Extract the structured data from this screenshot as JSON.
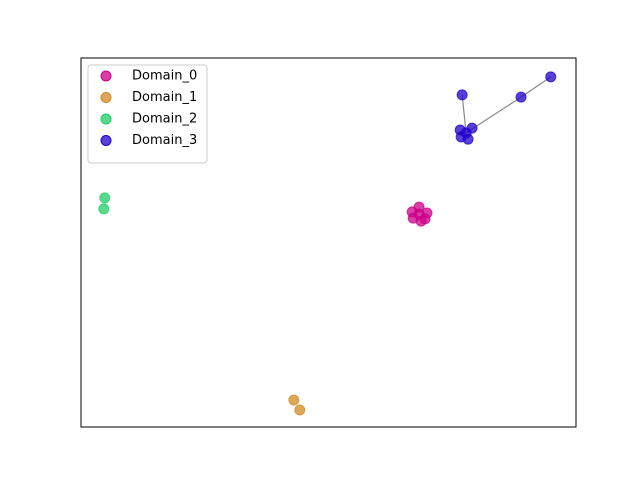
{
  "chart_data": {
    "type": "scatter",
    "xlim": [
      0,
      1
    ],
    "ylim": [
      0,
      1
    ],
    "legend": "upper left",
    "marker_opacity": 0.75,
    "edge_color": "#888888",
    "series": [
      {
        "name": "Domain_0",
        "color": "#cc0088",
        "x": [
          0.669,
          0.683,
          0.699,
          0.687,
          0.671,
          0.695,
          0.683
        ],
        "values": [
          0.583,
          0.596,
          0.58,
          0.558,
          0.566,
          0.564,
          0.577
        ]
      },
      {
        "name": "Domain_1",
        "color": "#d08a20",
        "x": [
          0.43,
          0.442
        ],
        "values": [
          0.073,
          0.046
        ]
      },
      {
        "name": "Domain_2",
        "color": "#22cc66",
        "x": [
          0.048,
          0.046
        ],
        "values": [
          0.621,
          0.591
        ]
      },
      {
        "name": "Domain_3",
        "color": "#2200cc",
        "x": [
          0.778,
          0.766,
          0.79,
          0.782,
          0.768,
          0.77,
          0.889,
          0.949
        ],
        "values": [
          0.797,
          0.805,
          0.81,
          0.78,
          0.786,
          0.9,
          0.894,
          0.949
        ],
        "edges": [
          [
            0,
            5
          ],
          [
            0,
            6
          ],
          [
            6,
            7
          ]
        ]
      }
    ]
  }
}
